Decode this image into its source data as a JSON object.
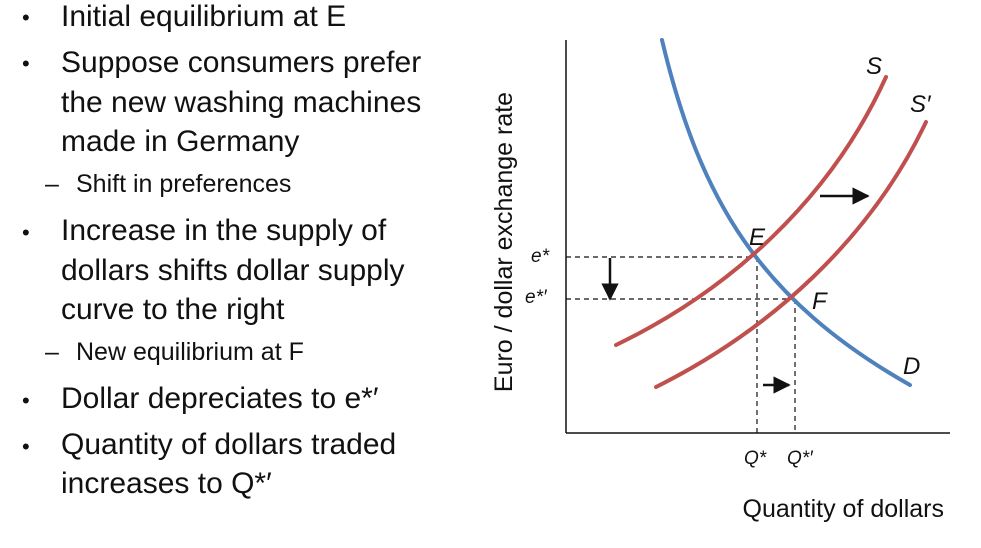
{
  "bullets": [
    {
      "type": "main",
      "lines": [
        "Initial equilibrium at E"
      ]
    },
    {
      "type": "main",
      "lines": [
        "Suppose consumers prefer",
        "the new washing machines",
        "made in Germany"
      ]
    },
    {
      "type": "sub",
      "lines": [
        "Shift in preferences"
      ]
    },
    {
      "type": "main",
      "lines": [
        "Increase in the supply of",
        "dollars shifts dollar supply",
        "curve to the right"
      ]
    },
    {
      "type": "sub",
      "lines": [
        "New equilibrium at F"
      ]
    },
    {
      "type": "main",
      "lines": [
        "Dollar depreciates to e*′"
      ]
    },
    {
      "type": "main",
      "lines": [
        "Quantity of dollars traded",
        "increases to Q*′"
      ]
    }
  ],
  "bullet_glyph": "•",
  "dash_glyph": "–",
  "diagram": {
    "y_axis_label": "Euro / dollar exchange rate",
    "x_axis_label": "Quantity of dollars",
    "curves": {
      "supply": "S",
      "supply_shifted": "S′",
      "demand": "D"
    },
    "points": {
      "initial": "E",
      "new": "F"
    },
    "y_ticks": [
      "e*",
      "e*′"
    ],
    "x_ticks": [
      "Q*",
      "Q*′"
    ],
    "colors": {
      "supply": "#c0504d",
      "demand": "#4f81bd",
      "axis": "#111111"
    }
  }
}
